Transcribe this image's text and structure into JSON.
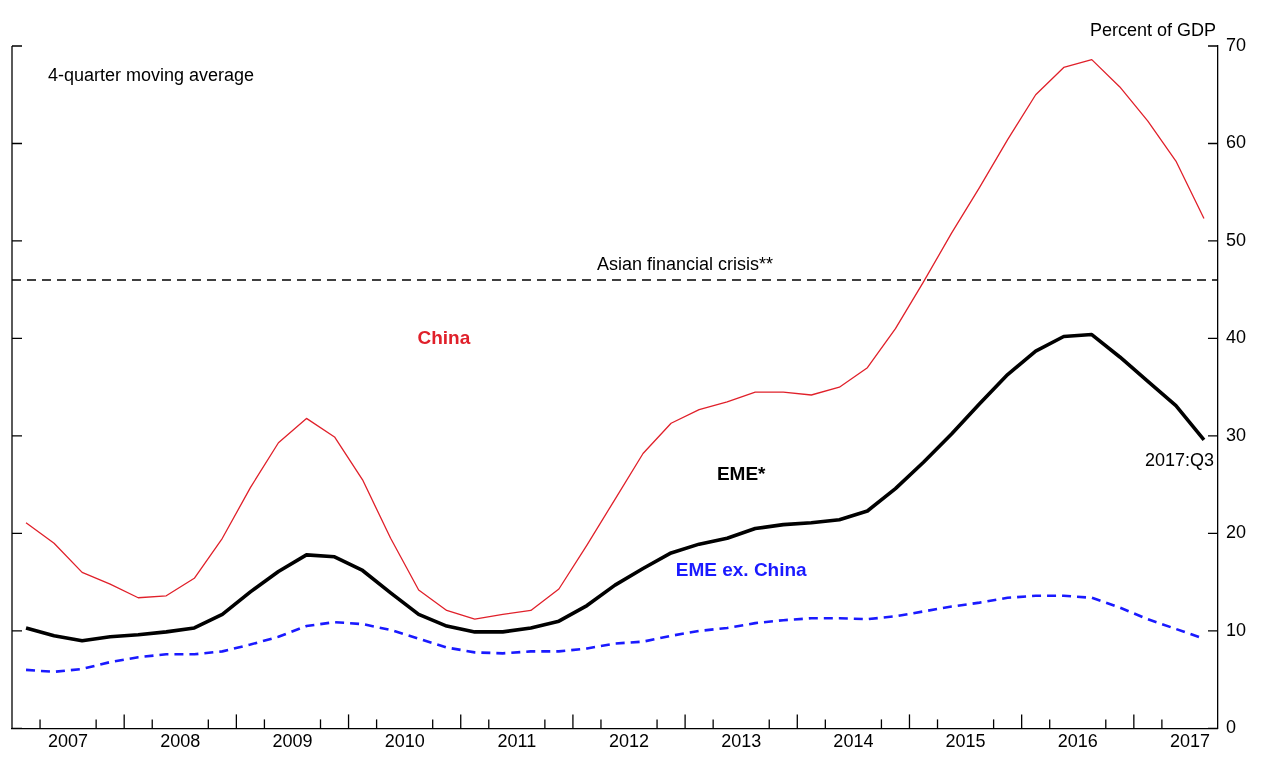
{
  "chart_data": {
    "type": "line",
    "ylabel": "Percent of GDP",
    "marker": "none",
    "annotations": [
      "4-quarter moving average",
      {
        "text": "2017:Q3",
        "x": 2017.625,
        "y": 29.6
      }
    ],
    "x": [
      2007.125,
      2007.375,
      2007.625,
      2007.875,
      2008.125,
      2008.375,
      2008.625,
      2008.875,
      2009.125,
      2009.375,
      2009.625,
      2009.875,
      2010.125,
      2010.375,
      2010.625,
      2010.875,
      2011.125,
      2011.375,
      2011.625,
      2011.875,
      2012.125,
      2012.375,
      2012.625,
      2012.875,
      2013.125,
      2013.375,
      2013.625,
      2013.875,
      2014.125,
      2014.375,
      2014.625,
      2014.875,
      2015.125,
      2015.375,
      2015.625,
      2015.875,
      2016.125,
      2016.375,
      2016.625,
      2016.875,
      2017.125,
      2017.375,
      2017.625
    ],
    "xlim": [
      2007,
      2017.75
    ],
    "xticks": [
      {
        "value": 2007.25,
        "label": null
      },
      {
        "value": 2007.5,
        "label": "2007"
      },
      {
        "value": 2007.75,
        "label": null
      },
      {
        "value": 2008,
        "label": null
      },
      {
        "value": 2008.25,
        "label": null
      },
      {
        "value": 2008.5,
        "label": "2008"
      },
      {
        "value": 2008.75,
        "label": null
      },
      {
        "value": 2009,
        "label": null
      },
      {
        "value": 2009.25,
        "label": null
      },
      {
        "value": 2009.5,
        "label": "2009"
      },
      {
        "value": 2009.75,
        "label": null
      },
      {
        "value": 2010,
        "label": null
      },
      {
        "value": 2010.25,
        "label": null
      },
      {
        "value": 2010.5,
        "label": "2010"
      },
      {
        "value": 2010.75,
        "label": null
      },
      {
        "value": 2011,
        "label": null
      },
      {
        "value": 2011.25,
        "label": null
      },
      {
        "value": 2011.5,
        "label": "2011"
      },
      {
        "value": 2011.75,
        "label": null
      },
      {
        "value": 2012,
        "label": null
      },
      {
        "value": 2012.25,
        "label": null
      },
      {
        "value": 2012.5,
        "label": "2012"
      },
      {
        "value": 2012.75,
        "label": null
      },
      {
        "value": 2013,
        "label": null
      },
      {
        "value": 2013.25,
        "label": null
      },
      {
        "value": 2013.5,
        "label": "2013"
      },
      {
        "value": 2013.75,
        "label": null
      },
      {
        "value": 2014,
        "label": null
      },
      {
        "value": 2014.25,
        "label": null
      },
      {
        "value": 2014.5,
        "label": "2014"
      },
      {
        "value": 2014.75,
        "label": null
      },
      {
        "value": 2015,
        "label": null
      },
      {
        "value": 2015.25,
        "label": null
      },
      {
        "value": 2015.5,
        "label": "2015"
      },
      {
        "value": 2015.75,
        "label": null
      },
      {
        "value": 2016,
        "label": null
      },
      {
        "value": 2016.25,
        "label": null
      },
      {
        "value": 2016.5,
        "label": "2016"
      },
      {
        "value": 2016.75,
        "label": null
      },
      {
        "value": 2017,
        "label": null
      },
      {
        "value": 2017.25,
        "label": null
      },
      {
        "value": 2017.5,
        "label": "2017"
      }
    ],
    "ylim": [
      0,
      70
    ],
    "yticks": [
      0,
      10,
      20,
      30,
      40,
      50,
      60,
      70
    ],
    "series": [
      {
        "name": "China",
        "color": "#e0202a",
        "line_style": "solid",
        "values": [
          21.1,
          19,
          16,
          14.8,
          13.4,
          13.6,
          15.4,
          19.5,
          24.7,
          29.3,
          31.8,
          29.9,
          25.5,
          19.5,
          14.2,
          12.1,
          11.2,
          11.7,
          12.1,
          14.3,
          18.8,
          23.5,
          28.2,
          31.3,
          32.7,
          33.5,
          34.5,
          34.5,
          34.2,
          35,
          37,
          41,
          45.8,
          50.8,
          55.5,
          60.4,
          65,
          67.8,
          68.6,
          65.8,
          62.3,
          58.2,
          52.3
        ]
      },
      {
        "name": "EME*",
        "color": "#000000",
        "line_style": "solid",
        "values": [
          10.3,
          9.5,
          9,
          9.4,
          9.6,
          9.9,
          10.3,
          11.7,
          14,
          16.1,
          17.8,
          17.6,
          16.2,
          13.9,
          11.7,
          10.5,
          9.9,
          9.9,
          10.3,
          11,
          12.6,
          14.7,
          16.4,
          18,
          18.9,
          19.5,
          20.5,
          20.9,
          21.1,
          21.4,
          22.3,
          24.6,
          27.3,
          30.2,
          33.3,
          36.3,
          38.7,
          40.2,
          40.4,
          38.1,
          35.6,
          33.1,
          29.6
        ]
      },
      {
        "name": "EME ex. China",
        "color": "#1a1aff",
        "line_style": "dashed",
        "values": [
          6,
          5.8,
          6.1,
          6.8,
          7.3,
          7.6,
          7.6,
          7.9,
          8.6,
          9.4,
          10.5,
          10.9,
          10.7,
          10.1,
          9.2,
          8.3,
          7.8,
          7.7,
          7.9,
          7.9,
          8.2,
          8.7,
          8.9,
          9.5,
          10,
          10.3,
          10.8,
          11.1,
          11.3,
          11.3,
          11.2,
          11.5,
          12,
          12.5,
          12.9,
          13.4,
          13.6,
          13.6,
          13.4,
          12.4,
          11.2,
          10.2,
          9.2
        ]
      }
    ],
    "ref_lines": [
      {
        "axis": "y",
        "value": 46,
        "label": "Asian financial crisis**",
        "color": "#000000",
        "line_style": "dashed"
      }
    ]
  }
}
